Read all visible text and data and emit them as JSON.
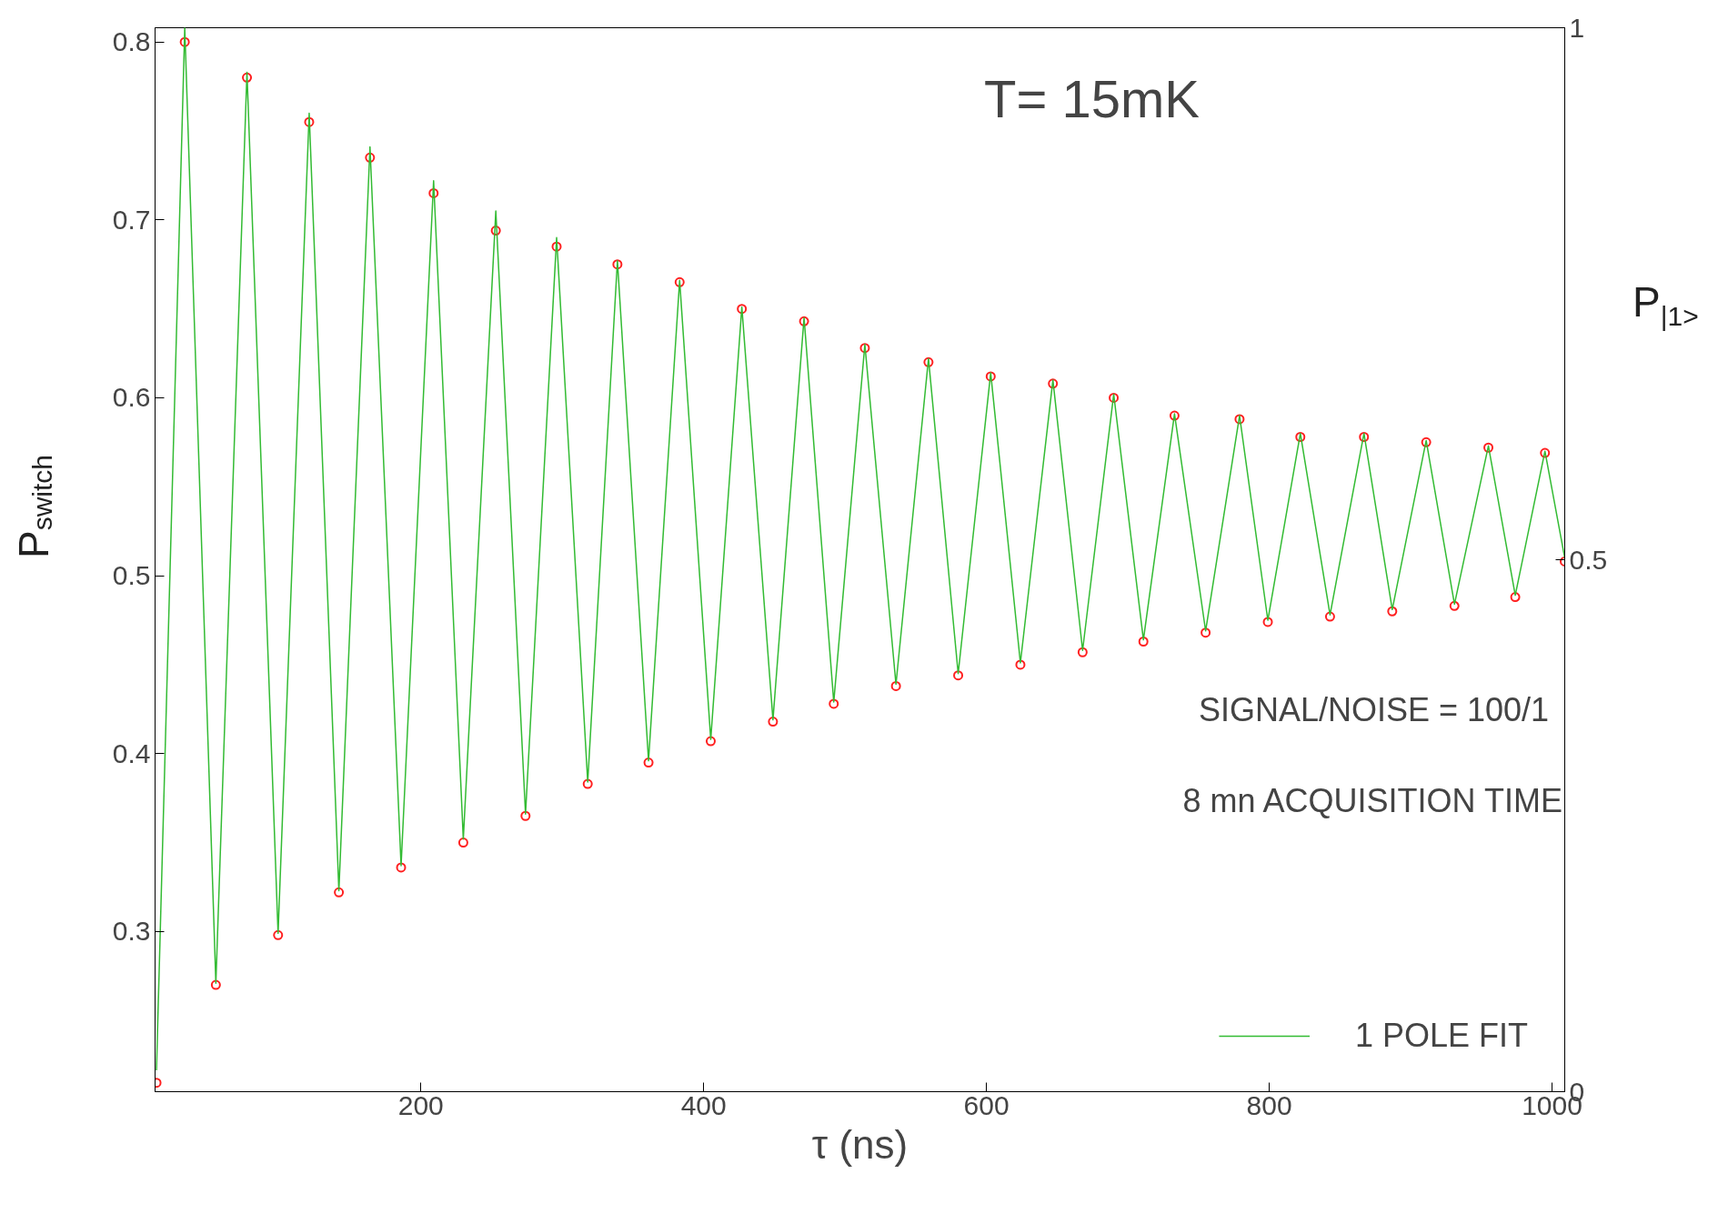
{
  "chart_data": {
    "type": "scatter",
    "xlabel": "τ (ns)",
    "ylabel": "P$_{switch}$",
    "y2label": "P$_{|1>}$",
    "xlim": [
      12,
      1009
    ],
    "ylim": [
      0.21,
      0.808
    ],
    "xticks": [
      200,
      400,
      600,
      800,
      1000
    ],
    "yticks": [
      0.3,
      0.4,
      0.5,
      0.6,
      0.7,
      0.8
    ],
    "y2lim": [
      0,
      1
    ],
    "y2ticks": [
      0,
      0.5,
      1
    ],
    "grid": false,
    "legend": "bottom right",
    "line_style": "solid",
    "annotations": [
      "T= 15mK",
      "SIGNAL/NOISE = 100/1",
      "8 mn ACQUISITION TIME"
    ],
    "series": [
      {
        "marker": "circle",
        "color": "#ff2020",
        "x": [
          13,
          33,
          55,
          77,
          99,
          121,
          142,
          164,
          186,
          209,
          230,
          253,
          274,
          296,
          318,
          339,
          361,
          383,
          405,
          427,
          449,
          471,
          492,
          514,
          536,
          559,
          580,
          603,
          624,
          647,
          668,
          690,
          711,
          733,
          755,
          779,
          799,
          822,
          843,
          867,
          887,
          911,
          931,
          955,
          974,
          995,
          1009
        ],
        "values": [
          0.215,
          0.8,
          0.27,
          0.78,
          0.298,
          0.755,
          0.322,
          0.735,
          0.336,
          0.715,
          0.35,
          0.694,
          0.365,
          0.685,
          0.383,
          0.675,
          0.395,
          0.665,
          0.407,
          0.65,
          0.418,
          0.643,
          0.428,
          0.628,
          0.438,
          0.62,
          0.444,
          0.612,
          0.45,
          0.608,
          0.457,
          0.6,
          0.463,
          0.59,
          0.468,
          0.588,
          0.474,
          0.578,
          0.477,
          0.578,
          0.48,
          0.575,
          0.483,
          0.572,
          0.488,
          0.569,
          0.508
        ]
      },
      {
        "type": "line",
        "name": "1 POLE FIT",
        "color": "#33bb33",
        "x": [
          13,
          33,
          55,
          77,
          99,
          121,
          142,
          164,
          186,
          209,
          230,
          253,
          274,
          296,
          318,
          339,
          361,
          383,
          405,
          427,
          449,
          471,
          492,
          514,
          536,
          559,
          580,
          603,
          624,
          647,
          668,
          690,
          711,
          733,
          755,
          779,
          799,
          822,
          843,
          867,
          887,
          911,
          931,
          955,
          974,
          995,
          1009
        ],
        "values": [
          0.222,
          0.808,
          0.271,
          0.783,
          0.299,
          0.76,
          0.323,
          0.741,
          0.337,
          0.722,
          0.352,
          0.705,
          0.366,
          0.69,
          0.384,
          0.677,
          0.396,
          0.666,
          0.408,
          0.651,
          0.419,
          0.645,
          0.429,
          0.63,
          0.439,
          0.622,
          0.445,
          0.614,
          0.451,
          0.61,
          0.458,
          0.602,
          0.464,
          0.591,
          0.469,
          0.59,
          0.475,
          0.58,
          0.478,
          0.58,
          0.481,
          0.576,
          0.484,
          0.573,
          0.489,
          0.57,
          0.51
        ]
      }
    ]
  }
}
